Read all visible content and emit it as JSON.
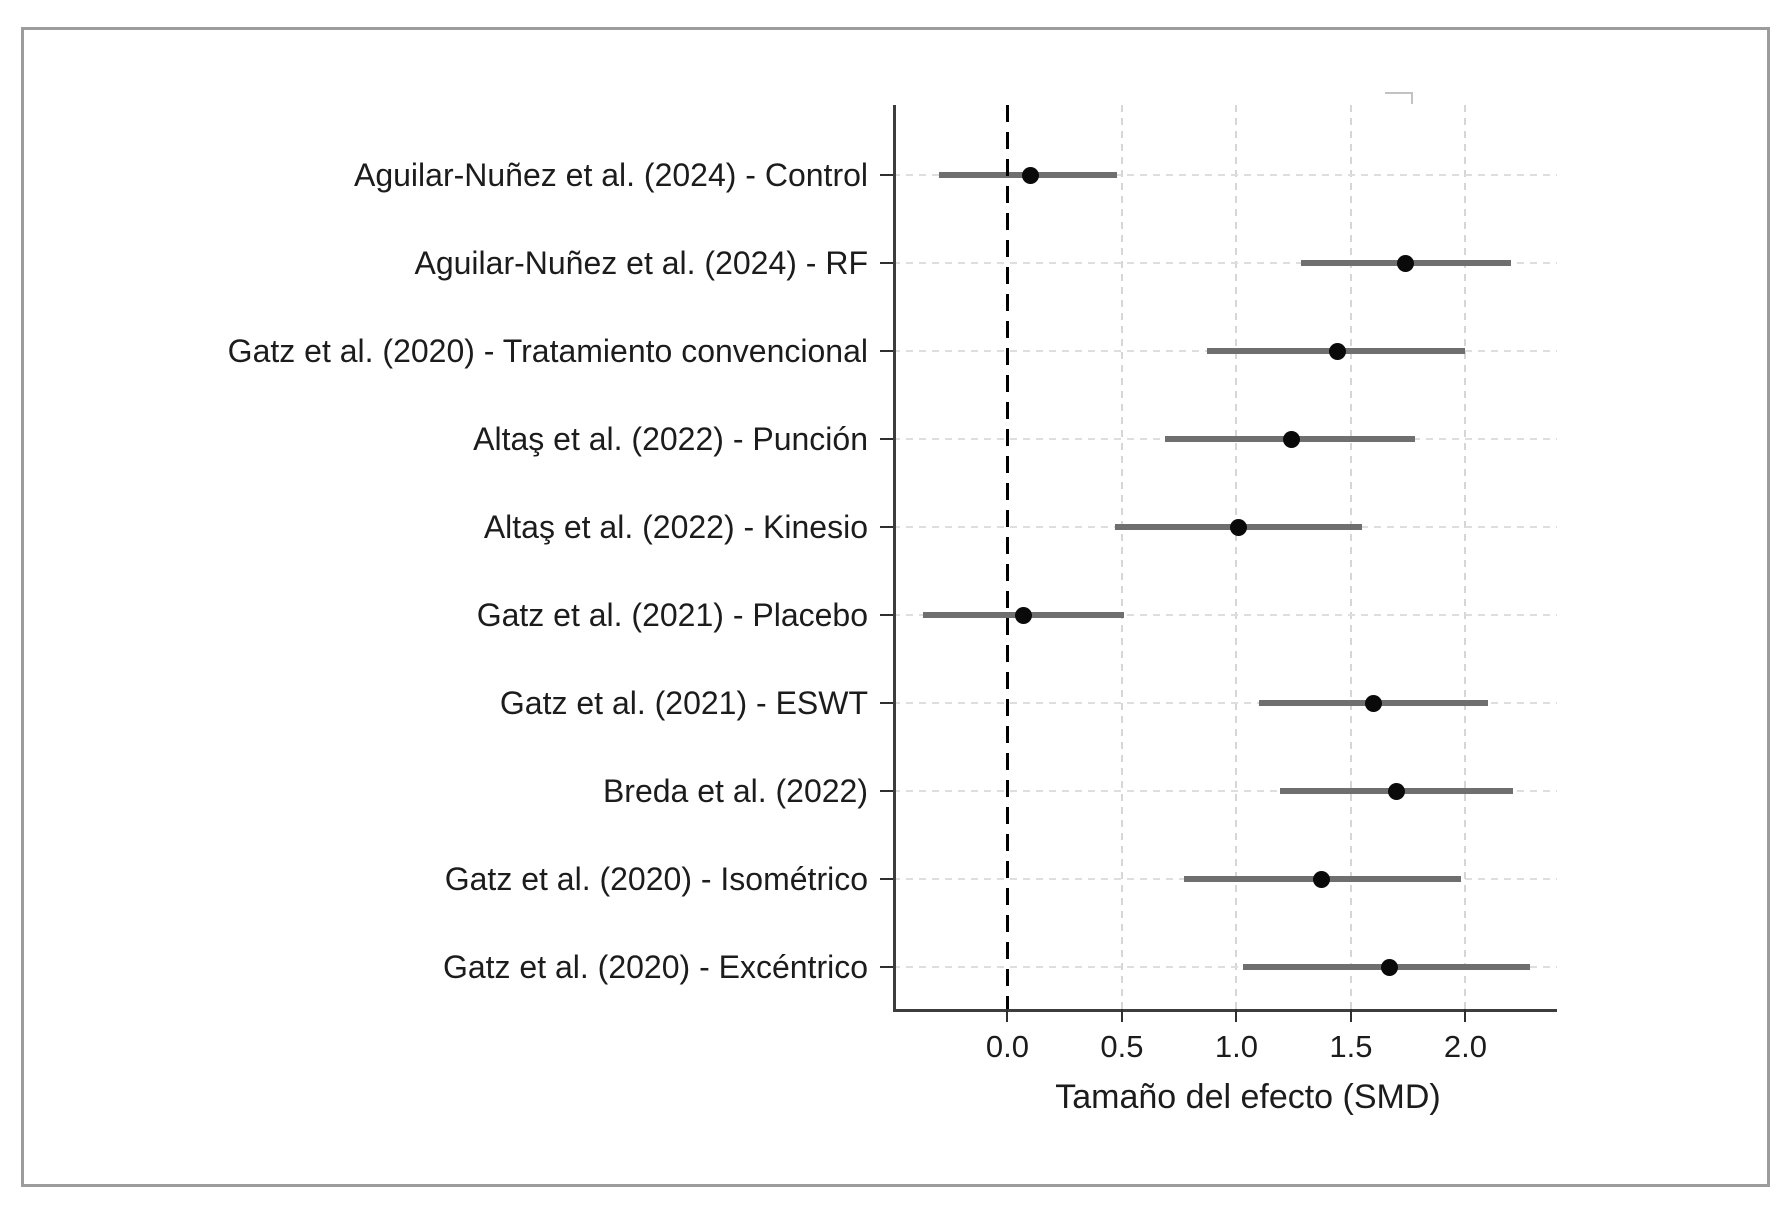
{
  "chart_data": {
    "type": "scatter",
    "variant": "forest-plot",
    "title": "",
    "xlabel": "Tamaño del efecto (SMD)",
    "ylabel": "",
    "xlim": [
      -0.5,
      2.4
    ],
    "x_ticks": [
      0.0,
      0.5,
      1.0,
      1.5,
      2.0
    ],
    "x_tick_labels": [
      "0.0",
      "0.5",
      "1.0",
      "1.5",
      "2.0"
    ],
    "reference_line_x": 0.0,
    "grid": true,
    "studies": [
      {
        "label": "Aguilar-Nuñez et al. (2024) - Control",
        "smd": 0.1,
        "ci_low": -0.3,
        "ci_high": 0.48
      },
      {
        "label": "Aguilar-Nuñez et al. (2024) - RF",
        "smd": 1.74,
        "ci_low": 1.28,
        "ci_high": 2.2
      },
      {
        "label": "Gatz et al. (2020) - Tratamiento convencional",
        "smd": 1.44,
        "ci_low": 0.87,
        "ci_high": 2.0
      },
      {
        "label": "Altaş et al. (2022) - Punción",
        "smd": 1.24,
        "ci_low": 0.69,
        "ci_high": 1.78
      },
      {
        "label": "Altaş et al. (2022) - Kinesio",
        "smd": 1.01,
        "ci_low": 0.47,
        "ci_high": 1.55
      },
      {
        "label": "Gatz et al. (2021) - Placebo",
        "smd": 0.07,
        "ci_low": -0.37,
        "ci_high": 0.51
      },
      {
        "label": "Gatz et al. (2021) - ESWT",
        "smd": 1.6,
        "ci_low": 1.1,
        "ci_high": 2.1
      },
      {
        "label": "Breda et al. (2022)",
        "smd": 1.7,
        "ci_low": 1.19,
        "ci_high": 2.21
      },
      {
        "label": "Gatz et al. (2020) - Isométrico",
        "smd": 1.37,
        "ci_low": 0.77,
        "ci_high": 1.98
      },
      {
        "label": "Gatz et al. (2020) - Excéntrico",
        "smd": 1.67,
        "ci_low": 1.03,
        "ci_high": 2.28
      }
    ]
  },
  "colors": {
    "frame_border": "#9c9c9c",
    "ci_bar": "#6f6f6f",
    "point": "#0a0a0a",
    "grid": "#d6d6d6",
    "axis": "#3d3d3d",
    "reference_line": "#000000",
    "text": "#1c1c1c"
  }
}
